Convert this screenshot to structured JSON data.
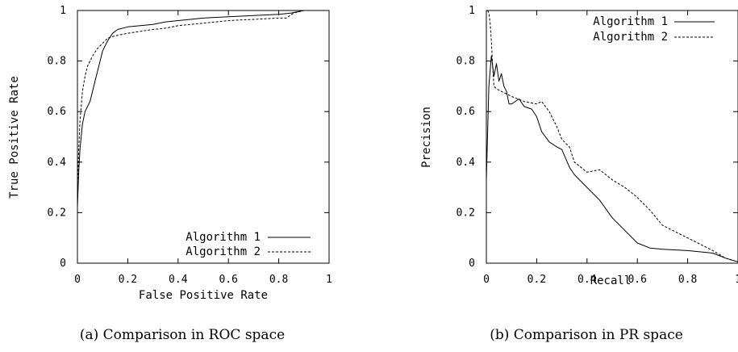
{
  "chart_data": [
    {
      "type": "line",
      "caption": "(a) Comparison in ROC space",
      "xlabel": "False Positive Rate",
      "ylabel": "True Positive Rate",
      "xlim": [
        0,
        1
      ],
      "ylim": [
        0,
        1
      ],
      "xticks": [
        "0",
        "0.2",
        "0.4",
        "0.6",
        "0.8",
        "1"
      ],
      "yticks": [
        "0",
        "0.2",
        "0.4",
        "0.6",
        "0.8",
        "1"
      ],
      "grid": false,
      "legend": "bottom-right",
      "series": [
        {
          "name": "Algorithm 1",
          "style": "solid",
          "x": [
            0,
            0.005,
            0.01,
            0.02,
            0.03,
            0.05,
            0.07,
            0.09,
            0.1,
            0.12,
            0.14,
            0.16,
            0.2,
            0.25,
            0.3,
            0.35,
            0.4,
            0.5,
            0.6,
            0.7,
            0.8,
            0.85,
            0.9,
            1.0
          ],
          "y": [
            0.22,
            0.36,
            0.45,
            0.55,
            0.6,
            0.64,
            0.72,
            0.8,
            0.84,
            0.88,
            0.91,
            0.925,
            0.935,
            0.94,
            0.945,
            0.955,
            0.96,
            0.97,
            0.975,
            0.98,
            0.985,
            0.99,
            1.0,
            1.0
          ]
        },
        {
          "name": "Algorithm 2",
          "style": "dashed",
          "x": [
            0,
            0.005,
            0.01,
            0.02,
            0.03,
            0.04,
            0.06,
            0.08,
            0.1,
            0.12,
            0.15,
            0.2,
            0.3,
            0.35,
            0.4,
            0.5,
            0.6,
            0.7,
            0.8,
            0.83,
            0.86,
            0.9,
            1.0
          ],
          "y": [
            0.3,
            0.45,
            0.56,
            0.68,
            0.74,
            0.78,
            0.82,
            0.85,
            0.87,
            0.89,
            0.9,
            0.91,
            0.925,
            0.93,
            0.94,
            0.95,
            0.96,
            0.965,
            0.97,
            0.97,
            0.99,
            1.0,
            1.0
          ]
        }
      ]
    },
    {
      "type": "line",
      "caption": "(b) Comparison in PR space",
      "xlabel": "Recall",
      "ylabel": "Precision",
      "xlim": [
        0,
        1
      ],
      "ylim": [
        0,
        1
      ],
      "xticks": [
        "0",
        "0.2",
        "0.4",
        "0.6",
        "0.8",
        "1"
      ],
      "yticks": [
        "0",
        "0.2",
        "0.4",
        "0.6",
        "0.8",
        "1"
      ],
      "grid": false,
      "legend": "top-right",
      "series": [
        {
          "name": "Algorithm 1",
          "style": "solid",
          "x": [
            0,
            0.01,
            0.02,
            0.03,
            0.04,
            0.05,
            0.06,
            0.07,
            0.08,
            0.09,
            0.1,
            0.13,
            0.15,
            0.18,
            0.2,
            0.22,
            0.25,
            0.28,
            0.3,
            0.33,
            0.35,
            0.4,
            0.45,
            0.5,
            0.55,
            0.6,
            0.65,
            0.7,
            0.8,
            0.9,
            0.95,
            1.0
          ],
          "y": [
            0.33,
            0.7,
            0.82,
            0.74,
            0.79,
            0.72,
            0.75,
            0.7,
            0.68,
            0.63,
            0.63,
            0.65,
            0.62,
            0.61,
            0.58,
            0.52,
            0.48,
            0.46,
            0.45,
            0.38,
            0.35,
            0.3,
            0.25,
            0.18,
            0.13,
            0.08,
            0.06,
            0.055,
            0.05,
            0.04,
            0.02,
            0.005
          ]
        },
        {
          "name": "Algorithm 2",
          "style": "dashed",
          "x": [
            0.005,
            0.01,
            0.015,
            0.02,
            0.025,
            0.03,
            0.04,
            0.06,
            0.08,
            0.1,
            0.15,
            0.2,
            0.22,
            0.25,
            0.28,
            0.3,
            0.33,
            0.35,
            0.4,
            0.45,
            0.5,
            0.55,
            0.6,
            0.65,
            0.7,
            0.8,
            0.9,
            0.95,
            1.0
          ],
          "y": [
            1.0,
            0.99,
            0.95,
            0.88,
            0.78,
            0.7,
            0.69,
            0.68,
            0.67,
            0.66,
            0.64,
            0.63,
            0.64,
            0.6,
            0.54,
            0.49,
            0.46,
            0.4,
            0.36,
            0.37,
            0.33,
            0.3,
            0.26,
            0.21,
            0.15,
            0.1,
            0.05,
            0.02,
            0.005
          ]
        }
      ]
    }
  ]
}
